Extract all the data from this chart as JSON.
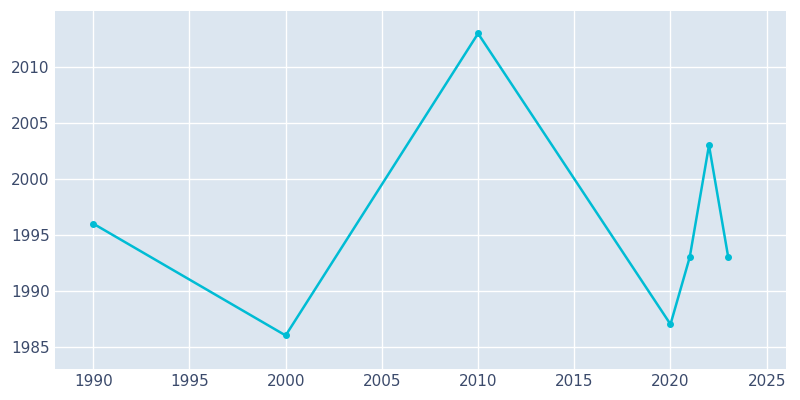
{
  "years": [
    1990,
    2000,
    2010,
    2020,
    2021,
    2022,
    2023
  ],
  "population": [
    1996,
    1986,
    2013,
    1987,
    1993,
    2003,
    1993
  ],
  "line_color": "#00BCD4",
  "marker": "o",
  "marker_size": 4,
  "bg_color": "#ffffff",
  "plot_bg_color": "#dce6f0",
  "grid_color": "#ffffff",
  "xlim": [
    1988,
    2026
  ],
  "ylim": [
    1983,
    2015
  ],
  "xticks": [
    1990,
    1995,
    2000,
    2005,
    2010,
    2015,
    2020,
    2025
  ],
  "yticks": [
    1985,
    1990,
    1995,
    2000,
    2005,
    2010
  ],
  "tick_color": "#3b4a6b",
  "tick_fontsize": 11
}
